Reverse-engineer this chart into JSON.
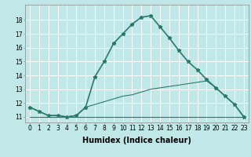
{
  "title": "",
  "xlabel": "Humidex (Indice chaleur)",
  "bg_color": "#c0e8e8",
  "grid_color": "#ffffff",
  "line_color": "#2a7a6a",
  "xlim": [
    -0.5,
    23.5
  ],
  "ylim": [
    10.6,
    19.1
  ],
  "yticks": [
    11,
    12,
    13,
    14,
    15,
    16,
    17,
    18
  ],
  "xticks": [
    0,
    1,
    2,
    3,
    4,
    5,
    6,
    7,
    8,
    9,
    10,
    11,
    12,
    13,
    14,
    15,
    16,
    17,
    18,
    19,
    20,
    21,
    22,
    23
  ],
  "xtick_labels": [
    "0",
    "1",
    "2",
    "3",
    "4",
    "5",
    "6",
    "7",
    "8",
    "9",
    "10",
    "11",
    "12",
    "13",
    "14",
    "15",
    "16",
    "17",
    "18",
    "19",
    "20",
    "21",
    "22",
    "23"
  ],
  "series1_x": [
    0,
    1,
    2,
    3,
    4,
    5,
    6,
    7,
    8,
    9,
    10,
    11,
    12,
    13,
    14,
    15,
    16,
    17,
    18,
    19,
    20,
    21,
    22,
    23
  ],
  "series1_y": [
    11.7,
    11.4,
    11.1,
    11.1,
    11.0,
    11.1,
    11.7,
    13.9,
    15.0,
    16.3,
    17.0,
    17.7,
    18.2,
    18.3,
    17.5,
    16.7,
    15.8,
    15.0,
    14.4,
    13.7,
    13.1,
    12.5,
    11.9,
    11.0
  ],
  "series2_x": [
    0,
    23
  ],
  "series2_y": [
    11.0,
    11.0
  ],
  "series3_x": [
    0,
    1,
    2,
    3,
    4,
    5,
    6,
    7,
    8,
    9,
    10,
    11,
    12,
    13,
    14,
    15,
    16,
    17,
    18,
    19,
    20,
    21,
    22,
    23
  ],
  "series3_y": [
    11.7,
    11.4,
    11.1,
    11.1,
    11.0,
    11.1,
    11.7,
    11.9,
    12.1,
    12.3,
    12.5,
    12.6,
    12.8,
    13.0,
    13.1,
    13.2,
    13.3,
    13.4,
    13.5,
    13.6,
    13.1,
    12.5,
    11.9,
    11.0
  ],
  "font_size_label": 7,
  "font_size_tick": 5.5,
  "lw_main": 1.2,
  "lw_thin": 0.8,
  "marker_size": 3.5
}
